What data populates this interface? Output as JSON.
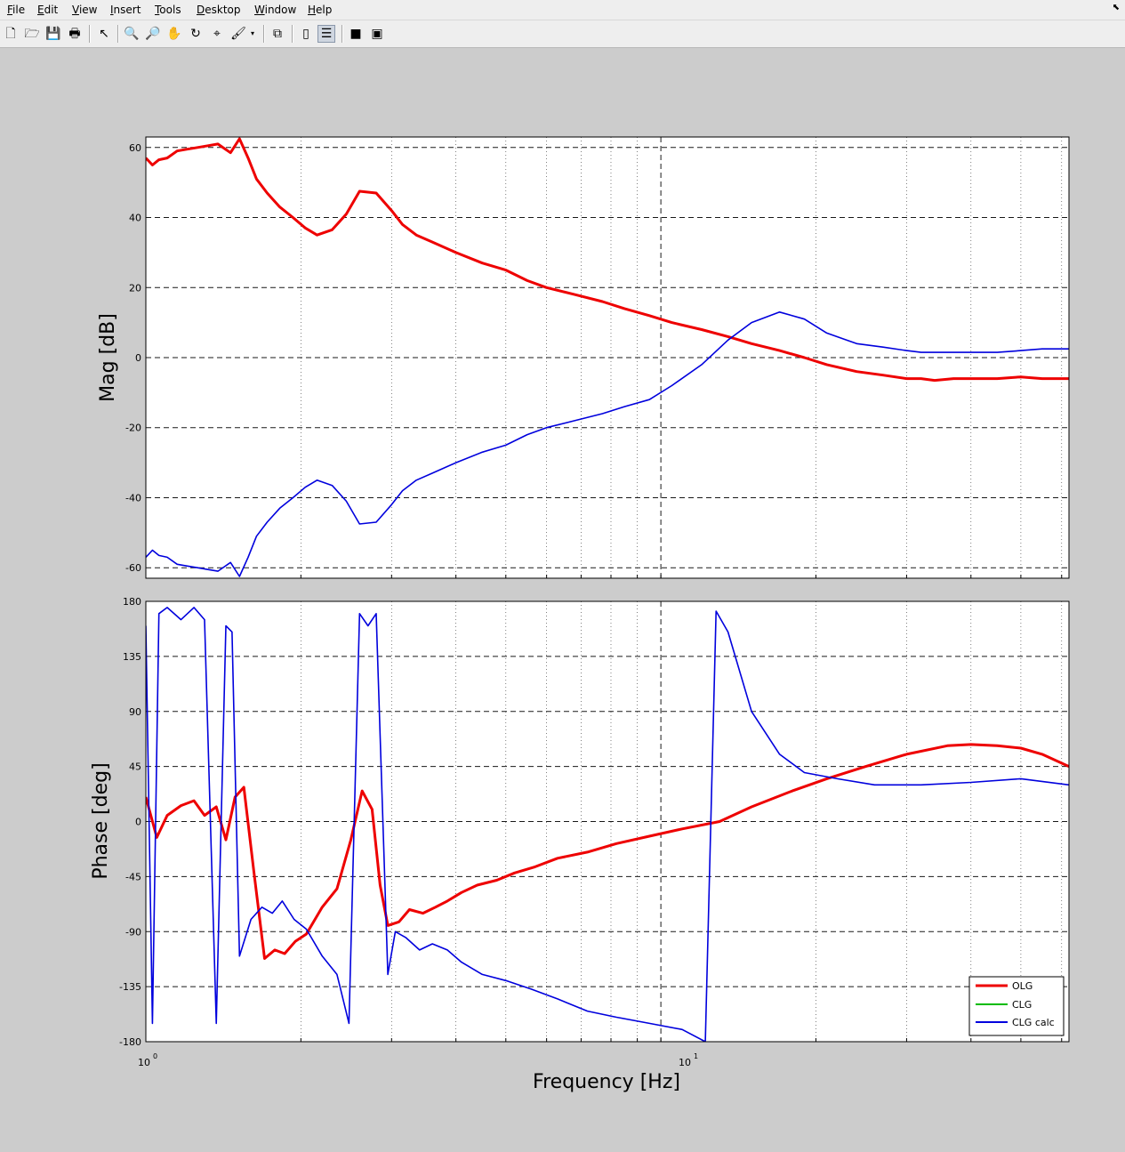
{
  "menu": [
    "File",
    "Edit",
    "View",
    "Insert",
    "Tools",
    "Desktop",
    "Window",
    "Help"
  ],
  "toolbar_icons": [
    "new-figure-icon",
    "open-file-icon",
    "save-icon",
    "print-icon",
    "select-arrow-icon",
    "zoom-in-icon",
    "zoom-out-icon",
    "pan-hand-icon",
    "rotate-3d-icon",
    "data-cursor-icon",
    "brush-icon",
    "brush-menu-icon",
    "link-plot-icon",
    "colorbar-icon",
    "legend-icon",
    "hide-plot-tools-icon",
    "show-plot-tools-icon"
  ],
  "colors": {
    "olg": "#ee0000",
    "clg": "#00bb00",
    "clg_calc": "#0000dd"
  },
  "chart_data": [
    {
      "type": "line",
      "ylabel": "Mag [dB]",
      "xscale": "log",
      "xlim": [
        1,
        62
      ],
      "ylim": [
        -63,
        63
      ],
      "yticks": [
        -60,
        -40,
        -20,
        0,
        20,
        40,
        60
      ],
      "ytick_labels": [
        "-60",
        "-40",
        "-20",
        "0",
        "20",
        "40",
        "60"
      ],
      "grid": true,
      "series": [
        {
          "name": "OLG",
          "color": "#ee0000",
          "x": [
            1,
            1.03,
            1.06,
            1.1,
            1.15,
            1.2,
            1.26,
            1.32,
            1.38,
            1.46,
            1.52,
            1.58,
            1.64,
            1.72,
            1.82,
            1.93,
            2.04,
            2.15,
            2.3,
            2.45,
            2.6,
            2.8,
            3.0,
            3.15,
            3.35,
            3.6,
            4.0,
            4.5,
            5,
            5.5,
            6,
            6.8,
            7.7,
            8.5,
            9.5,
            10.5,
            12,
            13.5,
            15,
            17,
            19,
            21,
            24,
            27,
            30,
            32,
            34,
            37,
            40,
            45,
            50,
            55,
            62
          ],
          "y": [
            57,
            55,
            56.5,
            57,
            59,
            59.5,
            60,
            60.5,
            61,
            58.5,
            62.5,
            57,
            51,
            47,
            43,
            40,
            37,
            35,
            36.5,
            41,
            47.5,
            47,
            42,
            38,
            35,
            33,
            30,
            27,
            25,
            22,
            20,
            18,
            16,
            14,
            12,
            10,
            8,
            6,
            4,
            2,
            0,
            -2,
            -4,
            -5,
            -6,
            -6,
            -6.5,
            -6,
            -6,
            -6,
            -5.5,
            -6,
            -6
          ]
        },
        {
          "name": "CLG",
          "color": "#00bb00",
          "x": [],
          "y": []
        },
        {
          "name": "CLG calc",
          "color": "#0000dd",
          "x": [
            1,
            1.03,
            1.06,
            1.1,
            1.15,
            1.2,
            1.26,
            1.32,
            1.38,
            1.46,
            1.52,
            1.58,
            1.64,
            1.72,
            1.82,
            1.93,
            2.04,
            2.15,
            2.3,
            2.45,
            2.6,
            2.8,
            3.0,
            3.15,
            3.35,
            3.6,
            4.0,
            4.5,
            5,
            5.5,
            6,
            6.8,
            7.7,
            8.5,
            9.5,
            10.5,
            12,
            13.5,
            15,
            17,
            19,
            21,
            24,
            27,
            30,
            32,
            34,
            37,
            40,
            45,
            50,
            55,
            62
          ],
          "y": [
            -57,
            -55,
            -56.5,
            -57,
            -59,
            -59.5,
            -60,
            -60.5,
            -61,
            -58.5,
            -62.5,
            -57,
            -51,
            -47,
            -43,
            -40,
            -37,
            -35,
            -36.5,
            -41,
            -47.5,
            -47,
            -42,
            -38,
            -35,
            -33,
            -30,
            -27,
            -25,
            -22,
            -20,
            -18,
            -16,
            -14,
            -12,
            -8,
            -2,
            5,
            10,
            13,
            11,
            7,
            4,
            3,
            2,
            1.5,
            1.5,
            1.5,
            1.5,
            1.5,
            2,
            2.5,
            2.5
          ]
        }
      ]
    },
    {
      "type": "line",
      "xlabel": "Frequency [Hz]",
      "ylabel": "Phase [deg]",
      "xscale": "log",
      "xlim": [
        1,
        62
      ],
      "ylim": [
        -180,
        180
      ],
      "xtick_labels": [
        "10",
        "10"
      ],
      "xtick_exponents": [
        "0",
        "1"
      ],
      "yticks": [
        -180,
        -135,
        -90,
        -45,
        0,
        45,
        90,
        135,
        180
      ],
      "ytick_labels": [
        "-180",
        "-135",
        "-90",
        "-45",
        "0",
        "45",
        "90",
        "135",
        "180"
      ],
      "grid": true,
      "legend": "bottom-right",
      "series": [
        {
          "name": "OLG",
          "color": "#ee0000",
          "x": [
            1,
            1.05,
            1.1,
            1.17,
            1.24,
            1.3,
            1.37,
            1.43,
            1.49,
            1.55,
            1.62,
            1.7,
            1.78,
            1.86,
            1.95,
            2.05,
            2.2,
            2.35,
            2.5,
            2.63,
            2.75,
            2.85,
            2.95,
            3.1,
            3.25,
            3.45,
            3.65,
            3.85,
            4.1,
            4.4,
            4.8,
            5.2,
            5.7,
            6.3,
            7.2,
            8.2,
            9.5,
            11,
            13,
            15,
            18,
            21,
            25,
            30,
            36,
            40,
            45,
            50,
            55,
            62
          ],
          "y": [
            20,
            -13,
            5,
            13,
            17,
            5,
            12,
            -15,
            20,
            28,
            -40,
            -112,
            -105,
            -108,
            -98,
            -92,
            -70,
            -55,
            -15,
            25,
            10,
            -52,
            -85,
            -82,
            -72,
            -75,
            -70,
            -65,
            -58,
            -52,
            -48,
            -42,
            -37,
            -30,
            -25,
            -18,
            -12,
            -6,
            0,
            12,
            25,
            35,
            45,
            55,
            62,
            63,
            62,
            60,
            55,
            45
          ]
        },
        {
          "name": "CLG",
          "color": "#00bb00",
          "x": [],
          "y": []
        },
        {
          "name": "CLG calc",
          "color": "#0000dd",
          "x": [
            1,
            1.03,
            1.06,
            1.1,
            1.17,
            1.24,
            1.3,
            1.37,
            1.43,
            1.47,
            1.52,
            1.6,
            1.68,
            1.76,
            1.84,
            1.94,
            2.05,
            2.2,
            2.35,
            2.48,
            2.6,
            2.7,
            2.8,
            2.95,
            3.05,
            3.2,
            3.4,
            3.6,
            3.85,
            4.1,
            4.5,
            5,
            5.6,
            6.3,
            7.2,
            8.2,
            9.5,
            11,
            12.2,
            12.8,
            13.5,
            15,
            17,
            19,
            22,
            26,
            32,
            40,
            50,
            62
          ],
          "y": [
            160,
            -165,
            170,
            175,
            165,
            175,
            165,
            -165,
            160,
            155,
            -110,
            -80,
            -70,
            -75,
            -65,
            -80,
            -88,
            -110,
            -125,
            -165,
            170,
            160,
            170,
            -125,
            -90,
            -95,
            -105,
            -100,
            -105,
            -115,
            -125,
            -130,
            -137,
            -145,
            -155,
            -160,
            -165,
            -170,
            -180,
            172,
            155,
            90,
            55,
            40,
            35,
            30,
            30,
            32,
            35,
            30
          ]
        }
      ]
    }
  ]
}
